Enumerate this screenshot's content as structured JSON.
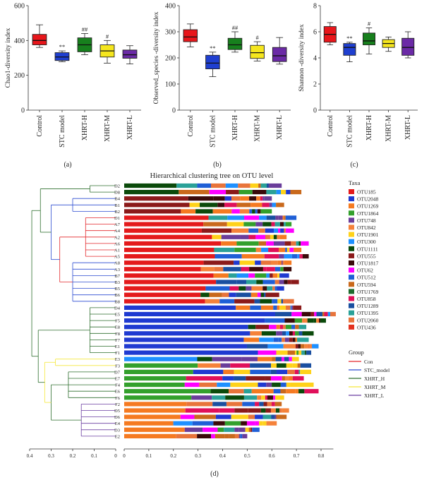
{
  "figure_caption": "(d)",
  "chart_data": [
    {
      "type": "boxplot",
      "panel_label": "(a)",
      "ylabel": "Chao1-diversity index",
      "ylim": [
        0,
        600
      ],
      "yticks": [
        "0",
        "200",
        "400",
        "600"
      ],
      "categories": [
        "Control",
        "STC model",
        "XHRT-H",
        "XHRT-M",
        "XHRT-L"
      ],
      "colors": [
        "#e8161b",
        "#1f3fd0",
        "#17801d",
        "#f5e61e",
        "#6b2aa6"
      ],
      "boxes": [
        {
          "min": 360,
          "q1": 375,
          "median": 400,
          "q3": 435,
          "max": 490
        },
        {
          "min": 278,
          "q1": 285,
          "median": 305,
          "q3": 330,
          "max": 340
        },
        {
          "min": 318,
          "q1": 335,
          "median": 375,
          "q3": 415,
          "max": 440
        },
        {
          "min": 270,
          "q1": 305,
          "median": 340,
          "q3": 375,
          "max": 400
        },
        {
          "min": 265,
          "q1": 298,
          "median": 318,
          "q3": 345,
          "max": 370
        }
      ],
      "annotations": [
        "",
        "**",
        "##",
        "#",
        ""
      ]
    },
    {
      "type": "boxplot",
      "panel_label": "(b)",
      "ylabel": "Observed_species -diversity index",
      "ylim": [
        0,
        400
      ],
      "yticks": [
        "0",
        "100",
        "200",
        "300",
        "400"
      ],
      "categories": [
        "Control",
        "STC model",
        "XHRT-H",
        "XHRT-M",
        "XHRT-L"
      ],
      "colors": [
        "#e8161b",
        "#1f3fd0",
        "#17801d",
        "#f5e61e",
        "#6b2aa6"
      ],
      "boxes": [
        {
          "min": 242,
          "q1": 262,
          "median": 280,
          "q3": 308,
          "max": 330
        },
        {
          "min": 128,
          "q1": 158,
          "median": 180,
          "q3": 210,
          "max": 222
        },
        {
          "min": 222,
          "q1": 232,
          "median": 250,
          "q3": 275,
          "max": 300
        },
        {
          "min": 188,
          "q1": 198,
          "median": 220,
          "q3": 248,
          "max": 262
        },
        {
          "min": 176,
          "q1": 186,
          "median": 208,
          "q3": 240,
          "max": 278
        }
      ],
      "annotations": [
        "",
        "**",
        "##",
        "#",
        ""
      ]
    },
    {
      "type": "boxplot",
      "panel_label": "(c)",
      "ylabel": "Shannon -diversity index",
      "ylim": [
        0,
        8
      ],
      "yticks": [
        "0",
        "2",
        "4",
        "6",
        "8"
      ],
      "categories": [
        "Control",
        "STC model",
        "XHRT-H",
        "XHRT-M",
        "XHRT-L"
      ],
      "colors": [
        "#e8161b",
        "#1f3fd0",
        "#17801d",
        "#f5e61e",
        "#6b2aa6"
      ],
      "boxes": [
        {
          "min": 5.0,
          "q1": 5.2,
          "median": 5.8,
          "q3": 6.4,
          "max": 6.7
        },
        {
          "min": 3.7,
          "q1": 4.2,
          "median": 4.8,
          "q3": 5.1,
          "max": 5.2
        },
        {
          "min": 4.3,
          "q1": 5.0,
          "median": 5.3,
          "q3": 5.9,
          "max": 6.3
        },
        {
          "min": 4.5,
          "q1": 4.8,
          "median": 5.1,
          "q3": 5.4,
          "max": 5.6
        },
        {
          "min": 4.0,
          "q1": 4.2,
          "median": 4.8,
          "q3": 5.5,
          "max": 6.0
        }
      ],
      "annotations": [
        "",
        "**",
        "#",
        "",
        ""
      ]
    },
    {
      "type": "stacked_bar_dendrogram",
      "title": "Hierarchical clustering tree on OTU level",
      "tree_axis_ticks": [
        "0.4",
        "0.3",
        "0.2",
        "0.1",
        "0"
      ],
      "bar_axis_ticks": [
        "0",
        "0.1",
        "0.2",
        "0.3",
        "0.4",
        "0.5",
        "0.6",
        "0.7",
        "0.8"
      ],
      "xlim": [
        0,
        0.85
      ],
      "legend_taxa_title": "Taxa",
      "taxa": [
        "OTU185",
        "OTU2048",
        "OTU1269",
        "OTU1864",
        "OTU748",
        "OTU842",
        "OTU1901",
        "OTU300",
        "OTU1111",
        "OTU555",
        "OTU1817",
        "OTU62",
        "OTU512",
        "OTU594",
        "OTU1769",
        "OTU858",
        "OTU1289",
        "OTU1395",
        "OTU2060",
        "OTU436"
      ],
      "taxa_colors": [
        "#e41a1c",
        "#1f3ad1",
        "#f57a21",
        "#33a02c",
        "#6a3d9a",
        "#f5823a",
        "#ffd21a",
        "#1e90ff",
        "#0b4a0b",
        "#8b1a1a",
        "#3a0a0a",
        "#ff00ff",
        "#1f5fd6",
        "#c9691c",
        "#1e6b2e",
        "#e0105a",
        "#1a4fa0",
        "#2aa198",
        "#e8743b",
        "#e33220"
      ],
      "legend_group_title": "Group",
      "groups": [
        "Con",
        "STC_model",
        "XHRT_H",
        "XHRT_M",
        "XHRT_L"
      ],
      "group_colors": [
        "#e3262a",
        "#2b4bd1",
        "#2d6e2d",
        "#f5e83a",
        "#6a3da0"
      ],
      "samples": [
        {
          "label": "D2",
          "group": "XHRT_L",
          "total": 0.64,
          "dominant": 8
        },
        {
          "label": "D8",
          "group": "XHRT_L",
          "total": 0.72,
          "dominant": 8
        },
        {
          "label": "B4",
          "group": "STC_model",
          "total": 0.6,
          "dominant": 9
        },
        {
          "label": "B1",
          "group": "STC_model",
          "total": 0.65,
          "dominant": 9
        },
        {
          "label": "B2",
          "group": "STC_model",
          "total": 0.6,
          "dominant": 9
        },
        {
          "label": "D1",
          "group": "XHRT_L",
          "total": 0.7,
          "dominant": 0
        },
        {
          "label": "A7",
          "group": "Con",
          "total": 0.68,
          "dominant": 0
        },
        {
          "label": "A4",
          "group": "Con",
          "total": 0.69,
          "dominant": 0
        },
        {
          "label": "A2",
          "group": "Con",
          "total": 0.66,
          "dominant": 0
        },
        {
          "label": "A6",
          "group": "Con",
          "total": 0.75,
          "dominant": 0
        },
        {
          "label": "A1",
          "group": "Con",
          "total": 0.72,
          "dominant": 0
        },
        {
          "label": "A5",
          "group": "Con",
          "total": 0.75,
          "dominant": 0
        },
        {
          "label": "A8",
          "group": "Con",
          "total": 0.68,
          "dominant": 0
        },
        {
          "label": "A3",
          "group": "Con",
          "total": 0.68,
          "dominant": 0
        },
        {
          "label": "B7",
          "group": "STC_model",
          "total": 0.67,
          "dominant": 0
        },
        {
          "label": "B3",
          "group": "STC_model",
          "total": 0.71,
          "dominant": 0
        },
        {
          "label": "B5",
          "group": "STC_model",
          "total": 0.65,
          "dominant": 0
        },
        {
          "label": "B6",
          "group": "STC_model",
          "total": 0.63,
          "dominant": 0
        },
        {
          "label": "B8",
          "group": "STC_model",
          "total": 0.69,
          "dominant": 0
        },
        {
          "label": "D4",
          "group": "XHRT_L",
          "total": 0.72,
          "dominant": 1
        },
        {
          "label": "E5",
          "group": "XHRT_M",
          "total": 0.86,
          "dominant": 1
        },
        {
          "label": "F5",
          "group": "XHRT_H",
          "total": 0.82,
          "dominant": 1
        },
        {
          "label": "E8",
          "group": "XHRT_M",
          "total": 0.74,
          "dominant": 1
        },
        {
          "label": "F8",
          "group": "XHRT_H",
          "total": 0.77,
          "dominant": 1
        },
        {
          "label": "F7",
          "group": "XHRT_H",
          "total": 0.75,
          "dominant": 1
        },
        {
          "label": "E1",
          "group": "XHRT_M",
          "total": 0.79,
          "dominant": 1
        },
        {
          "label": "F1",
          "group": "XHRT_H",
          "total": 0.76,
          "dominant": 1
        },
        {
          "label": "E3",
          "group": "XHRT_M",
          "total": 0.71,
          "dominant": 7
        },
        {
          "label": "F3",
          "group": "XHRT_H",
          "total": 0.76,
          "dominant": 3
        },
        {
          "label": "D7",
          "group": "XHRT_L",
          "total": 0.76,
          "dominant": 3
        },
        {
          "label": "E7",
          "group": "XHRT_M",
          "total": 0.73,
          "dominant": 3
        },
        {
          "label": "F4",
          "group": "XHRT_H",
          "total": 0.77,
          "dominant": 3
        },
        {
          "label": "E6",
          "group": "XHRT_M",
          "total": 0.79,
          "dominant": 3
        },
        {
          "label": "F6",
          "group": "XHRT_H",
          "total": 0.65,
          "dominant": 3
        },
        {
          "label": "F2",
          "group": "XHRT_H",
          "total": 0.64,
          "dominant": 2
        },
        {
          "label": "D5",
          "group": "XHRT_L",
          "total": 0.67,
          "dominant": 2
        },
        {
          "label": "D6",
          "group": "XHRT_L",
          "total": 0.66,
          "dominant": 2
        },
        {
          "label": "E4",
          "group": "XHRT_M",
          "total": 0.62,
          "dominant": 2
        },
        {
          "label": "D3",
          "group": "XHRT_L",
          "total": 0.55,
          "dominant": 2
        },
        {
          "label": "E2",
          "group": "XHRT_M",
          "total": 0.5,
          "dominant": 2
        }
      ]
    }
  ]
}
